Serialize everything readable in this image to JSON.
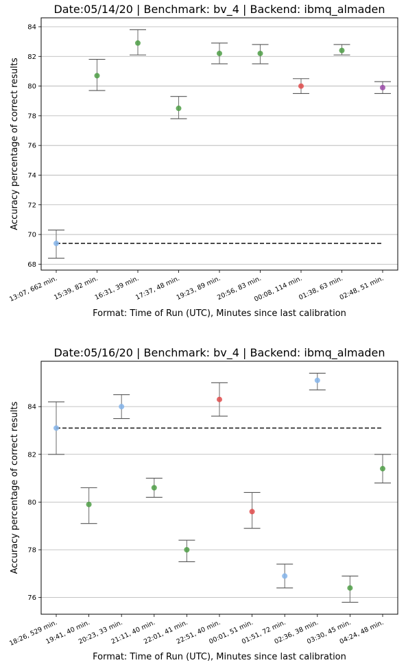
{
  "chart_data": [
    {
      "type": "scatter",
      "title": "Date:05/14/20 | Benchmark: bv_4 | Backend: ibmq_almaden",
      "xlabel": "Format: Time of Run (UTC), Minutes since last calibration",
      "ylabel": "Accuracy percentage of correct results",
      "ylim": [
        67.6,
        84.6
      ],
      "yticks": [
        "68",
        "70",
        "72",
        "74",
        "76",
        "78",
        "80",
        "82",
        "84"
      ],
      "grid": "horizontal",
      "categories": [
        "13:07, 662 min.",
        "15:39, 82 min.",
        "16:31, 39 min.",
        "17:37, 48 min.",
        "19:23, 89 min.",
        "20:56, 83 min.",
        "00:08, 114 min.",
        "01:38, 63 min.",
        "02:48, 51 min."
      ],
      "values": [
        69.4,
        80.7,
        82.9,
        78.5,
        82.2,
        82.2,
        80.0,
        82.4,
        79.9
      ],
      "error_low": [
        68.4,
        79.7,
        82.1,
        77.8,
        81.5,
        81.5,
        79.5,
        82.1,
        79.5
      ],
      "error_high": [
        70.3,
        81.8,
        83.8,
        79.3,
        82.9,
        82.8,
        80.5,
        82.8,
        80.3
      ],
      "point_colors": [
        "#84b4ea",
        "#4e9e45",
        "#4e9e45",
        "#4e9e45",
        "#4e9e45",
        "#4e9e45",
        "#e04b4b",
        "#4e9e45",
        "#9a4aa8"
      ],
      "reference_line": 69.4
    },
    {
      "type": "scatter",
      "title": "Date:05/16/20 | Benchmark: bv_4 | Backend: ibmq_almaden",
      "xlabel": "Format: Time of Run (UTC), Minutes since last calibration",
      "ylabel": "Accuracy percentage of correct results",
      "ylim": [
        75.3,
        85.9
      ],
      "yticks": [
        "76",
        "78",
        "80",
        "82",
        "84"
      ],
      "grid": "horizontal",
      "categories": [
        "18:26, 529 min.",
        "19:41, 40 min.",
        "20:23, 33 min.",
        "21:11, 40 min.",
        "22:01, 41 min.",
        "22:51, 40 min.",
        "00:01, 51 min.",
        "01:51, 72 min.",
        "02:36, 38 min.",
        "03:30, 45 min.",
        "04:24, 48 min."
      ],
      "values": [
        83.1,
        79.9,
        84.0,
        80.6,
        78.0,
        84.3,
        79.6,
        76.9,
        85.1,
        76.4,
        81.4
      ],
      "error_low": [
        82.0,
        79.1,
        83.5,
        80.2,
        77.5,
        83.6,
        78.9,
        76.4,
        84.7,
        75.8,
        80.8
      ],
      "error_high": [
        84.2,
        80.6,
        84.5,
        81.0,
        78.4,
        85.0,
        80.4,
        77.4,
        85.4,
        76.9,
        82.0
      ],
      "point_colors": [
        "#84b4ea",
        "#4e9e45",
        "#84b4ea",
        "#4e9e45",
        "#4e9e45",
        "#e04b4b",
        "#e04b4b",
        "#84b4ea",
        "#84b4ea",
        "#4e9e45",
        "#4e9e45"
      ],
      "reference_line": 83.1
    }
  ]
}
